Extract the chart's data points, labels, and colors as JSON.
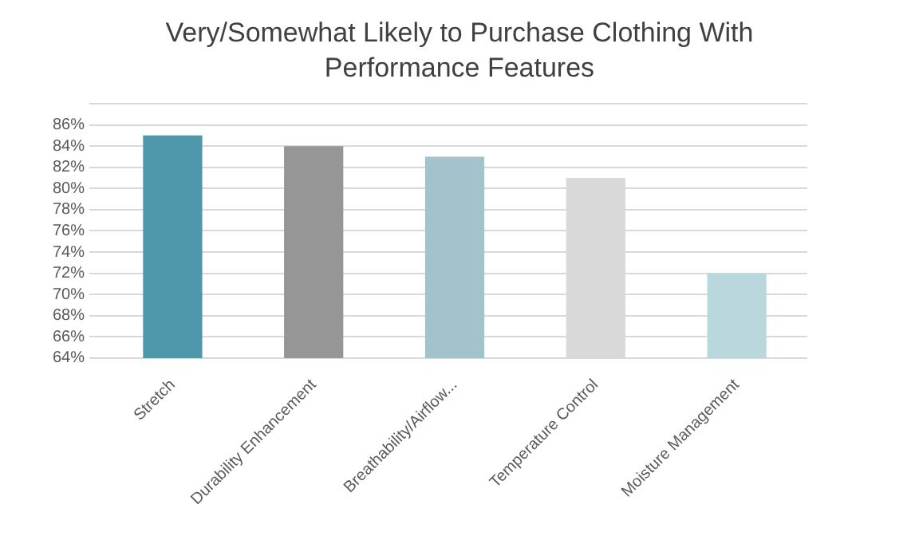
{
  "chart_data": {
    "type": "bar",
    "title": "Very/Somewhat Likely to Purchase Clothing With Performance Features",
    "categories": [
      "Stretch",
      "Durability Enhancement",
      "Breathability/Airflow...",
      "Temperature Control",
      "Moisture Management"
    ],
    "values": [
      85,
      84,
      83,
      81,
      72
    ],
    "colors": [
      "#4f97ab",
      "#969696",
      "#a2c3cb",
      "#d9d9d9",
      "#b9d7dd"
    ],
    "ylim": [
      64,
      88
    ],
    "yticks": [
      {
        "value": 64,
        "label": "64%"
      },
      {
        "value": 66,
        "label": "66%"
      },
      {
        "value": 68,
        "label": "68%"
      },
      {
        "value": 70,
        "label": "70%"
      },
      {
        "value": 72,
        "label": "72%"
      },
      {
        "value": 74,
        "label": "74%"
      },
      {
        "value": 76,
        "label": "76%"
      },
      {
        "value": 78,
        "label": "78%"
      },
      {
        "value": 80,
        "label": "80%"
      },
      {
        "value": 82,
        "label": "82%"
      },
      {
        "value": 84,
        "label": "84%"
      },
      {
        "value": 86,
        "label": "86%"
      },
      {
        "value": 88,
        "label": null
      }
    ],
    "grid": "y"
  }
}
